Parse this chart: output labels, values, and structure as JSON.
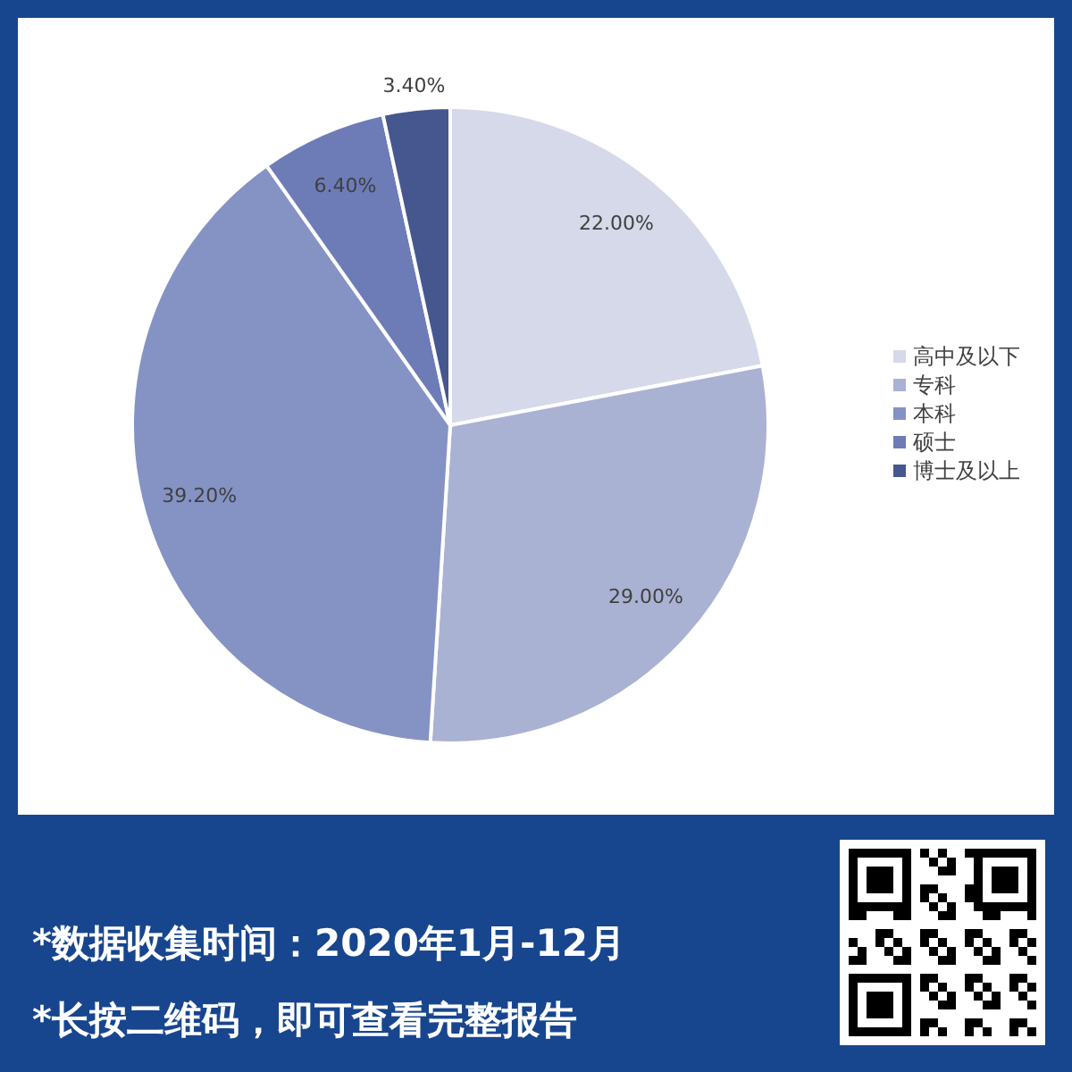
{
  "chart_data": {
    "type": "pie",
    "categories": [
      "高中及以下",
      "专科",
      "本科",
      "硕士",
      "博士及以上"
    ],
    "values": [
      22.0,
      29.0,
      39.2,
      6.4,
      3.4
    ],
    "value_labels": [
      "22.00%",
      "29.00%",
      "39.20%",
      "6.40%",
      "3.40%"
    ],
    "colors": [
      "#d5d9e9",
      "#aab2d3",
      "#8592c4",
      "#6d7cb7",
      "#46568f"
    ],
    "legend": "right",
    "annotations": [
      "*数据收集时间：2020年1月-12月",
      "*长按二维码，即可查看完整报告"
    ]
  }
}
